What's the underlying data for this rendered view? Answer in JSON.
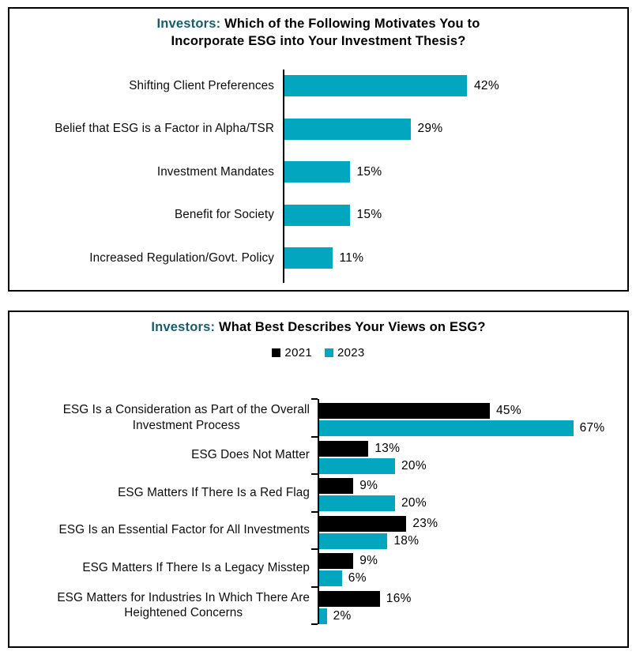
{
  "window": {
    "background": "#ffffff",
    "panel_border_color": "#000000"
  },
  "colors": {
    "bar_teal": "#02A7BF",
    "bar_black": "#000000",
    "title_accent": "#175E69",
    "text": "#000000"
  },
  "chart_data": [
    {
      "type": "bar",
      "orientation": "horizontal",
      "title_accent": "Investors:",
      "title_text": "Which of the Following Motivates You to\nIncorporate ESG into Your Investment Thesis?",
      "categories": [
        "Shifting Client Preferences",
        "Belief that ESG is a Factor in Alpha/TSR",
        "Investment Mandates",
        "Benefit for Society",
        "Increased Regulation/Govt. Policy"
      ],
      "values": [
        42,
        29,
        15,
        15,
        11
      ],
      "data_labels": [
        "42%",
        "29%",
        "15%",
        "15%",
        "11%"
      ],
      "value_suffix": "%",
      "bar_color": "#02A7BF",
      "axis": {
        "baseline_visible": true,
        "gridlines": false,
        "value_axis_visible": false
      },
      "xlim": [
        0,
        80
      ]
    },
    {
      "type": "grouped_bar",
      "orientation": "horizontal",
      "title_accent": "Investors:",
      "title_text": "What Best Describes Your Views on ESG?",
      "legend": {
        "position": "top-center",
        "entries": [
          {
            "label": "2021",
            "color": "#000000"
          },
          {
            "label": "2023",
            "color": "#02A7BF"
          }
        ]
      },
      "categories": [
        "ESG Is a Consideration as Part of the Overall\nInvestment Process",
        "ESG Does Not Matter",
        "ESG Matters If There Is a Red Flag",
        "ESG Is an Essential Factor for All Investments",
        "ESG Matters If There Is a Legacy Misstep",
        "ESG Matters for Industries In Which There Are\nHeightened Concerns"
      ],
      "series": [
        {
          "name": "2021",
          "color": "#000000",
          "values": [
            45,
            13,
            9,
            23,
            9,
            16
          ],
          "data_labels": [
            "45%",
            "13%",
            "9%",
            "23%",
            "9%",
            "16%"
          ]
        },
        {
          "name": "2023",
          "color": "#02A7BF",
          "values": [
            67,
            20,
            20,
            18,
            6,
            2
          ],
          "data_labels": [
            "67%",
            "20%",
            "20%",
            "18%",
            "6%",
            "2%"
          ]
        }
      ],
      "value_suffix": "%",
      "axis": {
        "baseline_visible": true,
        "category_ticks": true,
        "gridlines": false,
        "value_axis_visible": false
      },
      "xlim": [
        0,
        80
      ]
    }
  ]
}
